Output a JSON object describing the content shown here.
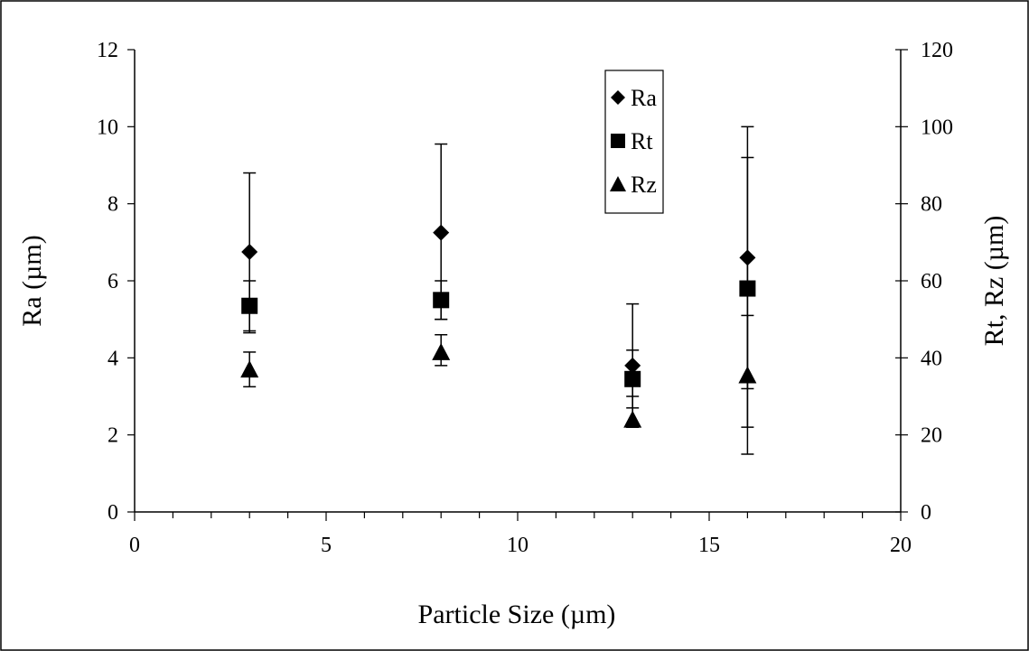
{
  "chart_data": {
    "type": "scatter",
    "title": "",
    "xlabel": "Particle Size (µm)",
    "ylabel": "Ra (µm)",
    "y2label": "Rt, Rz (µm)",
    "xlim": [
      0,
      20
    ],
    "ylim": [
      0,
      12
    ],
    "y2lim": [
      0,
      120
    ],
    "xticks": [
      "0",
      "5",
      "10",
      "15",
      "20"
    ],
    "yticks": [
      "0",
      "2",
      "4",
      "6",
      "8",
      "10",
      "12"
    ],
    "y2ticks": [
      "0",
      "20",
      "40",
      "60",
      "80",
      "100",
      "120"
    ],
    "grid": false,
    "legend_position": "top-center",
    "series": [
      {
        "name": "Ra",
        "marker": "diamond",
        "axis": "left",
        "points": [
          {
            "x": 3,
            "y": 6.75,
            "err_low": 4.7,
            "err_high": 8.8
          },
          {
            "x": 8,
            "y": 7.25,
            "err_low": 5.0,
            "err_high": 9.55
          },
          {
            "x": 13,
            "y": 3.8,
            "err_low": 2.2,
            "err_high": 5.4
          },
          {
            "x": 16,
            "y": 6.6,
            "err_low": 3.2,
            "err_high": 10.0
          }
        ]
      },
      {
        "name": "Rt",
        "marker": "square",
        "axis": "right",
        "points": [
          {
            "x": 3,
            "y": 53.5,
            "err_low": 46.5,
            "err_high": 60.0
          },
          {
            "x": 8,
            "y": 55.0,
            "err_low": 50.0,
            "err_high": 60.0
          },
          {
            "x": 13,
            "y": 34.5,
            "err_low": 27.0,
            "err_high": 42.0
          },
          {
            "x": 16,
            "y": 58.0,
            "err_low": 22.0,
            "err_high": 92.0
          }
        ]
      },
      {
        "name": "Rz",
        "marker": "triangle",
        "axis": "right",
        "points": [
          {
            "x": 3,
            "y": 37.0,
            "err_low": 32.5,
            "err_high": 41.5
          },
          {
            "x": 8,
            "y": 41.5,
            "err_low": 38.0,
            "err_high": 46.0
          },
          {
            "x": 13,
            "y": 24.0,
            "err_low": 22.0,
            "err_high": 30.0
          },
          {
            "x": 16,
            "y": 35.5,
            "err_low": 15.0,
            "err_high": 51.0
          }
        ]
      }
    ]
  }
}
